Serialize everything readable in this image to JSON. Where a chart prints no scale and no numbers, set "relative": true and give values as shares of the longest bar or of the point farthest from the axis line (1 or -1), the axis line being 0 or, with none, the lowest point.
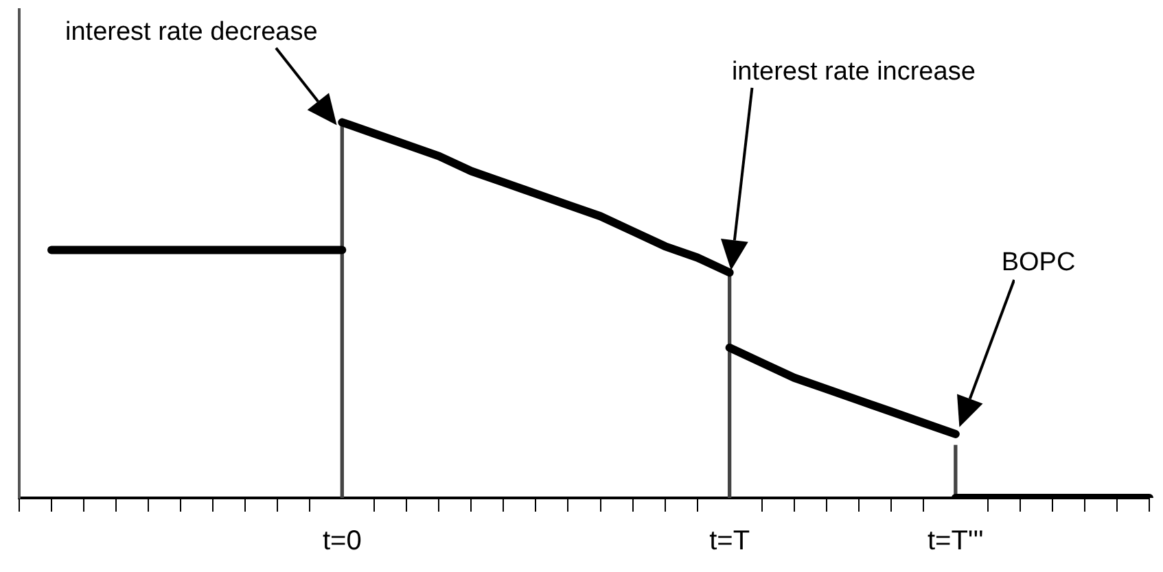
{
  "chart_data": {
    "type": "line",
    "relative": true,
    "categories": [
      null,
      null,
      null,
      null,
      null,
      null,
      null,
      null,
      null,
      null,
      "t=0",
      null,
      null,
      null,
      null,
      null,
      null,
      null,
      null,
      null,
      null,
      null,
      "t=T",
      null,
      null,
      null,
      null,
      null,
      null,
      "t=T'''",
      null,
      null,
      null,
      null,
      null,
      null
    ],
    "series": [
      {
        "color": "#000000",
        "values": [
          null,
          0.66,
          0.66,
          0.66,
          0.66,
          0.66,
          0.66,
          0.66,
          0.66,
          0.66,
          0.66,
          null,
          null,
          null,
          null,
          null,
          null,
          null,
          null,
          null,
          null,
          null,
          null,
          null,
          null,
          null,
          null,
          null,
          null,
          null,
          null,
          null,
          null,
          null,
          null,
          null
        ]
      },
      {
        "color": "#000000",
        "values": [
          null,
          null,
          null,
          null,
          null,
          null,
          null,
          null,
          null,
          null,
          1.0,
          0.97,
          0.94,
          0.91,
          0.87,
          0.84,
          0.81,
          0.78,
          0.75,
          0.71,
          0.67,
          0.64,
          0.6,
          null,
          null,
          null,
          null,
          null,
          null,
          null,
          null,
          null,
          null,
          null,
          null,
          null
        ]
      },
      {
        "color": "#000000",
        "values": [
          null,
          null,
          null,
          null,
          null,
          null,
          null,
          null,
          null,
          null,
          null,
          null,
          null,
          null,
          null,
          null,
          null,
          null,
          null,
          null,
          null,
          null,
          0.4,
          0.36,
          0.32,
          0.29,
          0.26,
          0.23,
          0.2,
          0.17,
          null,
          null,
          null,
          null,
          null,
          null
        ]
      },
      {
        "color": "#000000",
        "values": [
          null,
          null,
          null,
          null,
          null,
          null,
          null,
          null,
          null,
          null,
          null,
          null,
          null,
          null,
          null,
          null,
          null,
          null,
          null,
          null,
          null,
          null,
          null,
          null,
          null,
          null,
          null,
          null,
          null,
          0,
          0,
          0,
          0,
          0,
          0,
          0
        ]
      },
      {
        "color": "#444444",
        "type": "bar",
        "values": [
          null,
          null,
          null,
          null,
          null,
          null,
          null,
          null,
          null,
          null,
          1.0,
          null,
          null,
          null,
          null,
          null,
          null,
          null,
          null,
          null,
          null,
          null,
          0.6,
          null,
          null,
          null,
          null,
          null,
          null,
          0.14,
          null,
          null,
          null,
          null,
          null,
          null
        ]
      }
    ],
    "annotations": [
      "interest rate decrease",
      "interest rate increase",
      "BOPC"
    ],
    "grid": false,
    "legend": false,
    "marker": "none",
    "line_style": "solid"
  }
}
